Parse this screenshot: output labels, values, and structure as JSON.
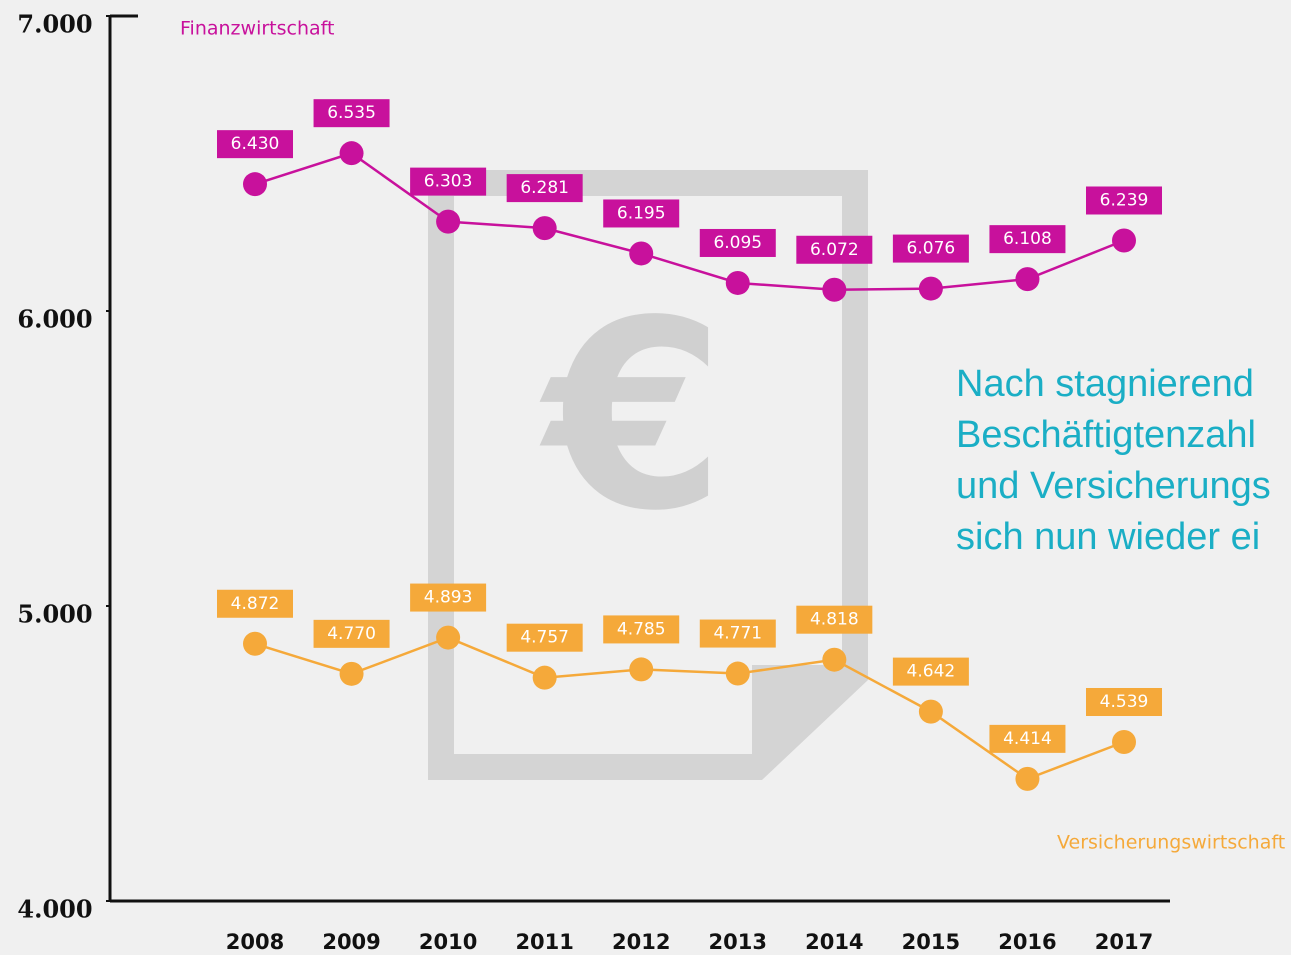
{
  "chart_data": {
    "type": "line",
    "categories": [
      "2008",
      "2009",
      "2010",
      "2011",
      "2012",
      "2013",
      "2014",
      "2015",
      "2016",
      "2017"
    ],
    "series": [
      {
        "name": "Finanzwirtschaft",
        "color": "#c8119c",
        "values": [
          6430,
          6535,
          6303,
          6281,
          6195,
          6095,
          6072,
          6076,
          6108,
          6239
        ],
        "value_labels": [
          "6.430",
          "6.535",
          "6.303",
          "6.281",
          "6.195",
          "6.095",
          "6.072",
          "6.076",
          "6.108",
          "6.239"
        ]
      },
      {
        "name": "Versicherungswirtschaft",
        "color": "#f5a93a",
        "values": [
          4872,
          4770,
          4893,
          4757,
          4785,
          4771,
          4818,
          4642,
          4414,
          4539
        ],
        "value_labels": [
          "4.872",
          "4.770",
          "4.893",
          "4.757",
          "4.785",
          "4.771",
          "4.818",
          "4.642",
          "4.414",
          "4.539"
        ]
      }
    ],
    "ylim": [
      4000,
      7000
    ],
    "yticks": [
      {
        "value": 4000,
        "label": "4.000"
      },
      {
        "value": 5000,
        "label": "5.000"
      },
      {
        "value": 6000,
        "label": "6.000"
      },
      {
        "value": 7000,
        "label": "7.000"
      }
    ],
    "annotation": [
      "Nach stagnierend",
      "Beschäftigtenzahl",
      "und Versicherungs",
      "sich nun wieder ei"
    ]
  }
}
